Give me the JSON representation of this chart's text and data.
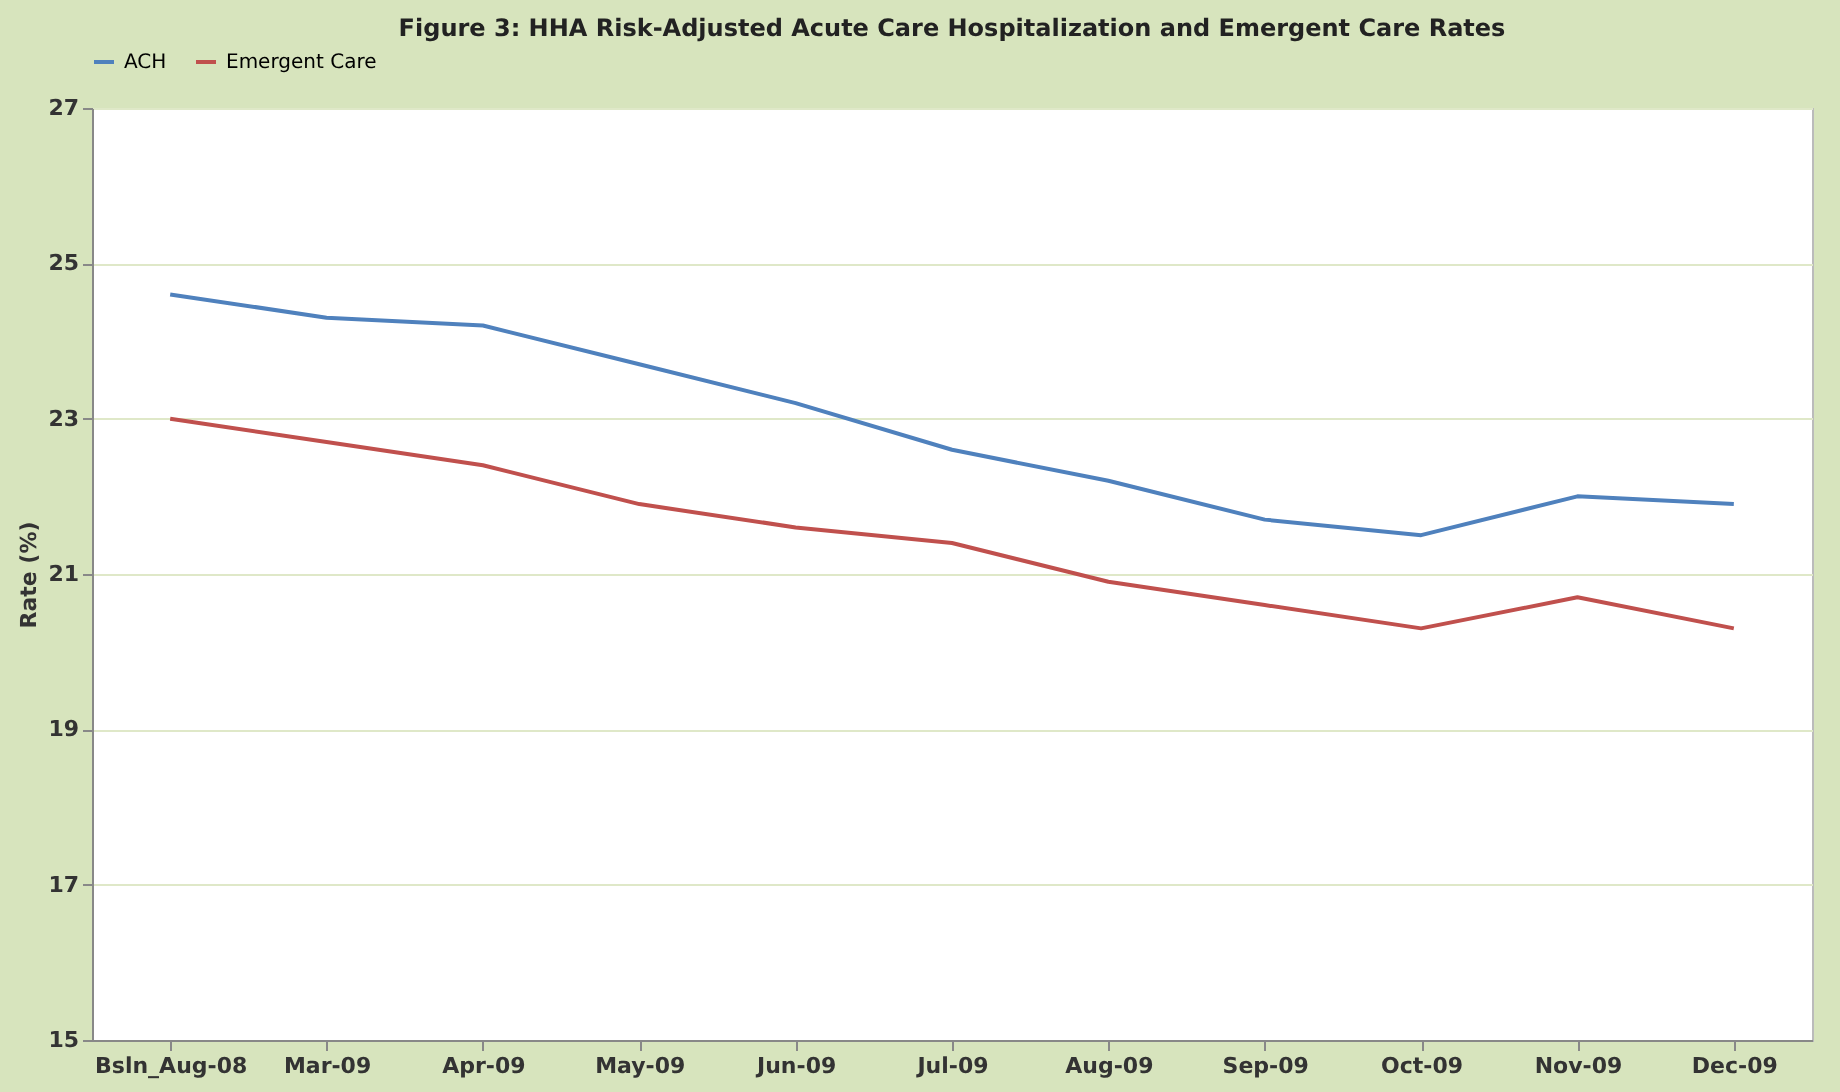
{
  "chart_data": {
    "type": "line",
    "title": "Figure 3: HHA  Risk-Adjusted  Acute Care Hospitalization  and Emergent Care Rates",
    "ylabel": "Rate (%)",
    "categories": [
      "Bsln_Aug-08",
      "Mar-09",
      "Apr-09",
      "May-09",
      "Jun-09",
      "Jul-09",
      "Aug-09",
      "Sep-09",
      "Oct-09",
      "Nov-09",
      "Dec-09"
    ],
    "series": [
      {
        "name": "ACH",
        "color": "#4f81bd",
        "values": [
          24.6,
          24.3,
          24.2,
          23.7,
          23.2,
          22.6,
          22.2,
          21.7,
          21.5,
          22.0,
          21.9
        ]
      },
      {
        "name": "Emergent Care",
        "color": "#c0504d",
        "values": [
          23.0,
          22.7,
          22.4,
          21.9,
          21.6,
          21.4,
          20.9,
          20.6,
          20.3,
          20.7,
          20.3
        ]
      }
    ],
    "ylim": [
      15,
      27
    ],
    "yticks": [
      15,
      17,
      19,
      21,
      23,
      25,
      27
    ],
    "grid": "y",
    "legend": "top",
    "marker": "none",
    "line_style": "solid"
  }
}
